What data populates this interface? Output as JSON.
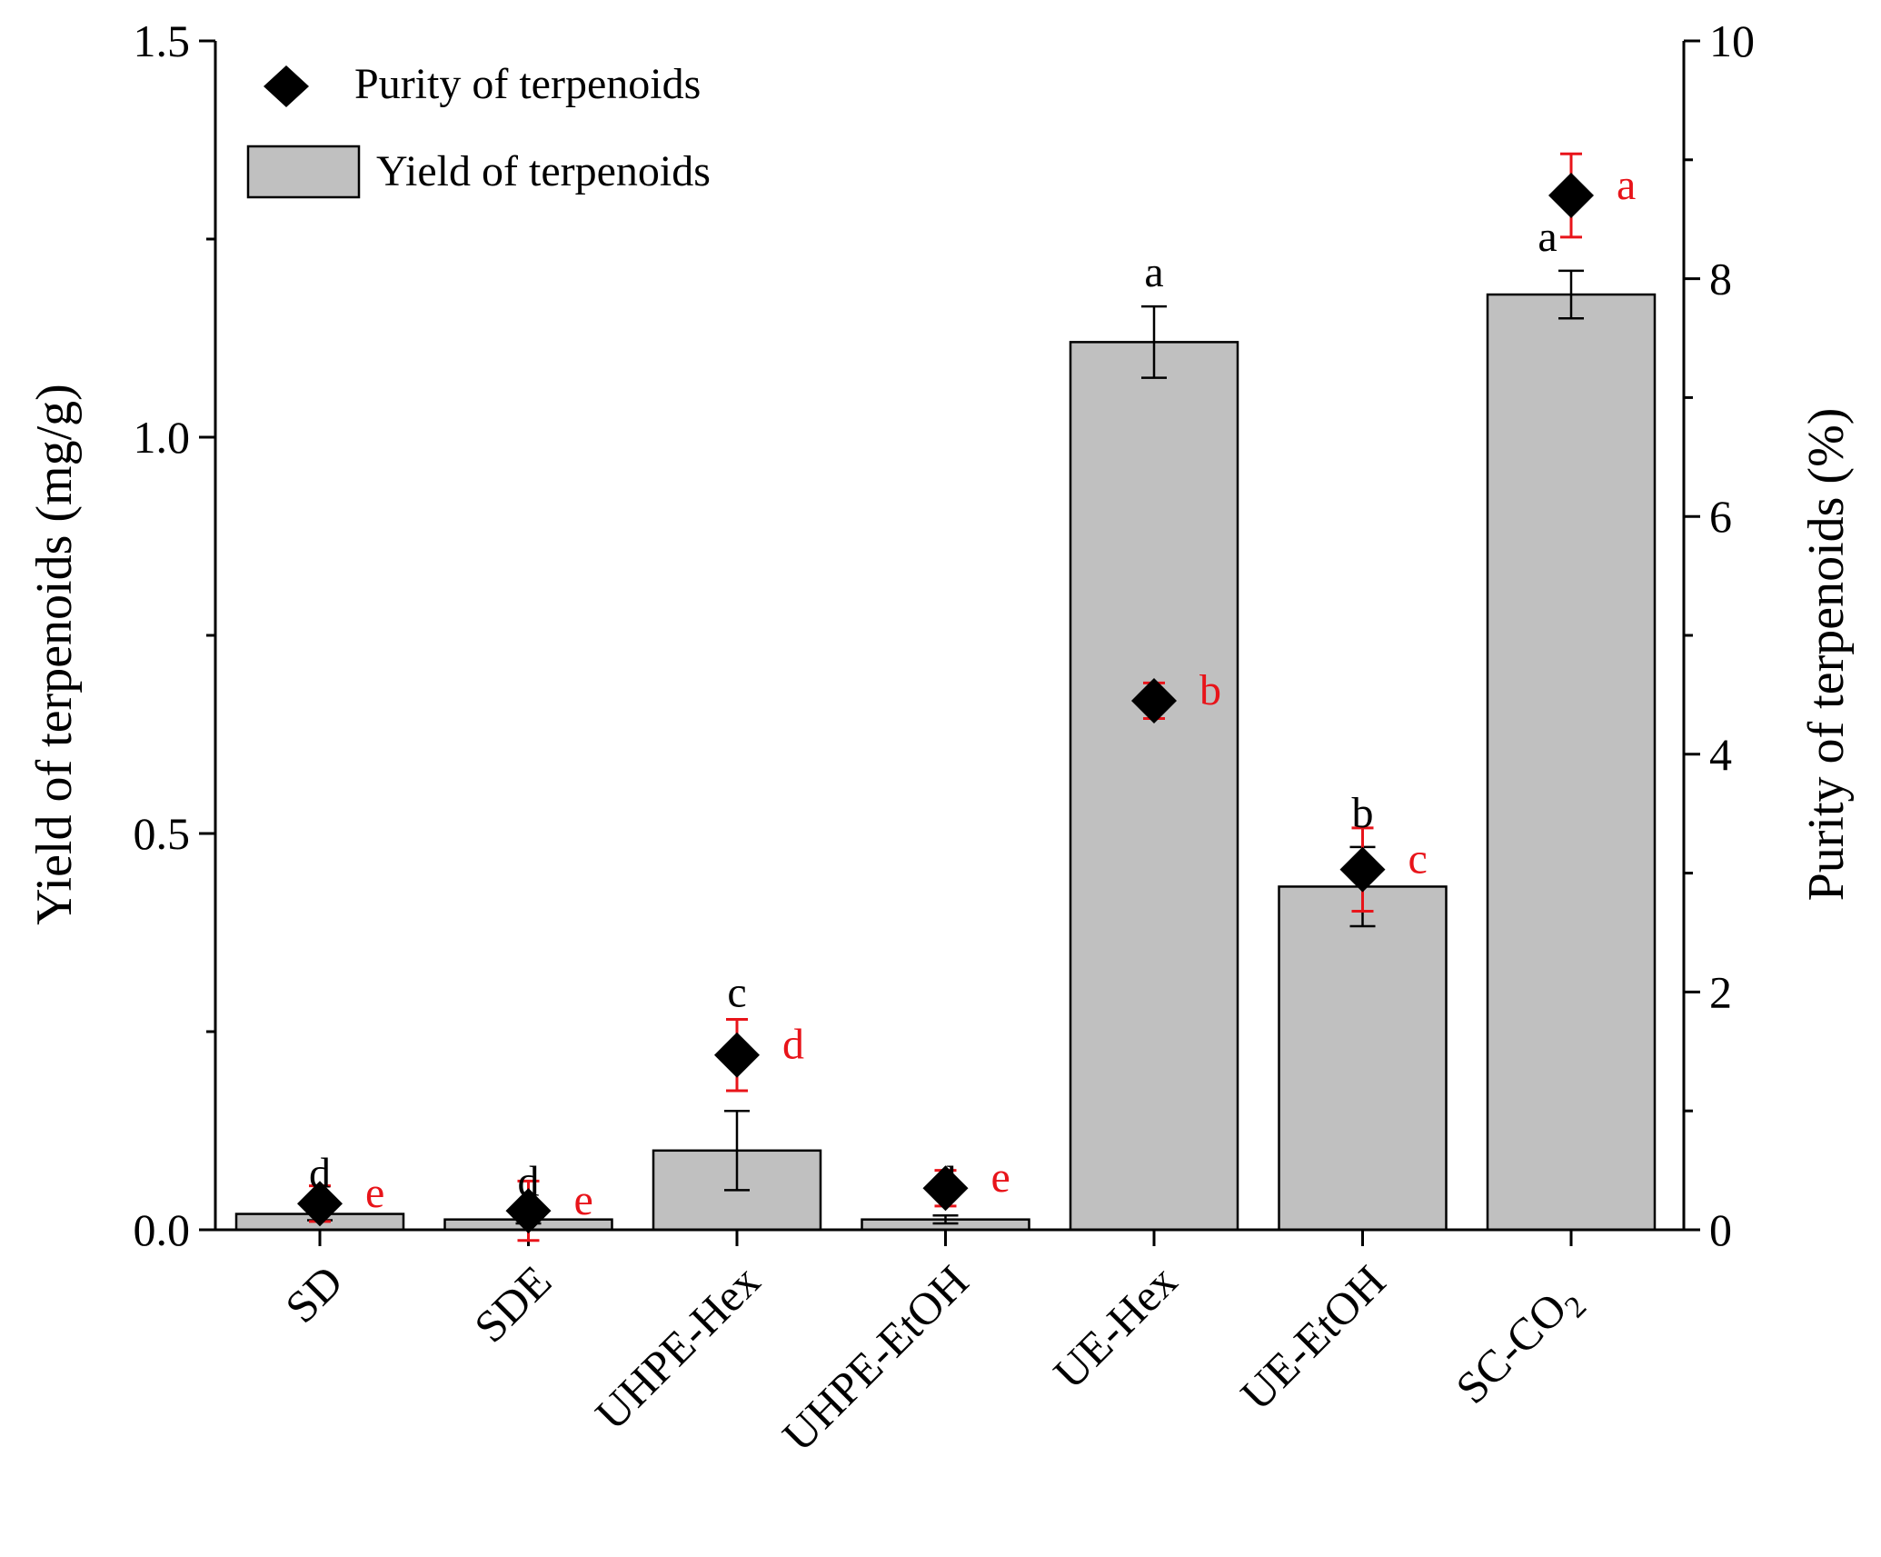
{
  "chart_data": {
    "type": "bar",
    "categories": [
      "SD",
      "SDE",
      "UHPE-Hex",
      "UHPE-EtOH",
      "UE-Hex",
      "UE-EtOH",
      "SC-CO"
    ],
    "category_subscript": [
      "",
      "",
      "",
      "",
      "",
      "",
      "2"
    ],
    "ylabel": "Yield of terpenoids (mg/g)",
    "y2label": "Purity of terpenoids (%)",
    "ylim": [
      0,
      1.5
    ],
    "yticks": [
      "0.0",
      "0.5",
      "1.0",
      "1.5"
    ],
    "y2lim": [
      0,
      10
    ],
    "y2ticks": [
      "0",
      "2",
      "4",
      "6",
      "8",
      "10"
    ],
    "legend": {
      "position": "top-left",
      "purity_label": "Purity of terpenoids",
      "yield_label": "Yield of terpenoids"
    },
    "series": [
      {
        "name": "Yield of terpenoids",
        "kind": "bar",
        "axis": "left",
        "values": [
          0.02,
          0.013,
          0.1,
          0.013,
          1.12,
          0.433,
          1.18
        ],
        "errors": [
          0.008,
          0.005,
          0.05,
          0.005,
          0.045,
          0.05,
          0.03
        ],
        "letters": [
          "d",
          "d",
          "",
          "d",
          "a",
          "b",
          "a"
        ],
        "error_color": "#000000"
      },
      {
        "name": "Purity of terpenoids",
        "kind": "scatter",
        "axis": "right",
        "marker": "diamond",
        "values": [
          0.22,
          0.16,
          1.47,
          0.35,
          4.45,
          3.03,
          8.7
        ],
        "errors": [
          0.15,
          0.25,
          0.3,
          0.15,
          0.15,
          0.35,
          0.35
        ],
        "letters": [
          "e",
          "e",
          "d",
          "e",
          "b",
          "c",
          "a"
        ],
        "error_color": "#e8141a",
        "letter_color": "#e8141a"
      }
    ],
    "annotations": [
      {
        "category": "UHPE-Hex",
        "text": "c",
        "anchor": "purity-top",
        "color": "#000000"
      }
    ],
    "colors": {
      "bar_fill": "#c0c0c0",
      "bar_stroke": "#000000",
      "marker": "#000000",
      "axis": "#000000"
    }
  }
}
